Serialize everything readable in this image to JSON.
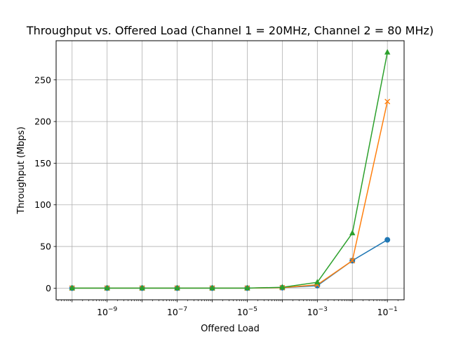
{
  "chart_data": {
    "type": "line",
    "title": "Throughput vs. Offered Load (Channel 1 = 20MHz, Channel 2 = 80 MHz)",
    "xlabel": "Offered Load",
    "ylabel": "Throughput (Mbps)",
    "x_scale": "log",
    "xlim": [
      3.5e-11,
      0.3
    ],
    "ylim": [
      -14,
      297
    ],
    "grid": true,
    "x": [
      1e-10,
      1e-09,
      1e-08,
      1e-07,
      1e-06,
      1e-05,
      0.0001,
      0.001,
      0.01,
      0.1
    ],
    "x_ticks": [
      {
        "value": 1e-09,
        "base": "10",
        "exp": "−9"
      },
      {
        "value": 1e-07,
        "base": "10",
        "exp": "−7"
      },
      {
        "value": 1e-05,
        "base": "10",
        "exp": "−5"
      },
      {
        "value": 0.001,
        "base": "10",
        "exp": "−3"
      },
      {
        "value": 0.1,
        "base": "10",
        "exp": "−1"
      }
    ],
    "y_ticks": [
      0,
      50,
      100,
      150,
      200,
      250
    ],
    "y_tick_labels": [
      "0",
      "50",
      "100",
      "150",
      "200",
      "250"
    ],
    "series": [
      {
        "color": "#1f77b4",
        "marker": "circle",
        "values": [
          0,
          0,
          0,
          0,
          0,
          0,
          0.5,
          3,
          33,
          58
        ]
      },
      {
        "color": "#ff7f0e",
        "marker": "x",
        "values": [
          0,
          0,
          0,
          0,
          0,
          0,
          0.5,
          4,
          33,
          224
        ]
      },
      {
        "color": "#2ca02c",
        "marker": "triangle",
        "values": [
          0,
          0,
          0,
          0,
          0,
          0,
          1,
          7,
          66,
          283
        ]
      }
    ]
  }
}
